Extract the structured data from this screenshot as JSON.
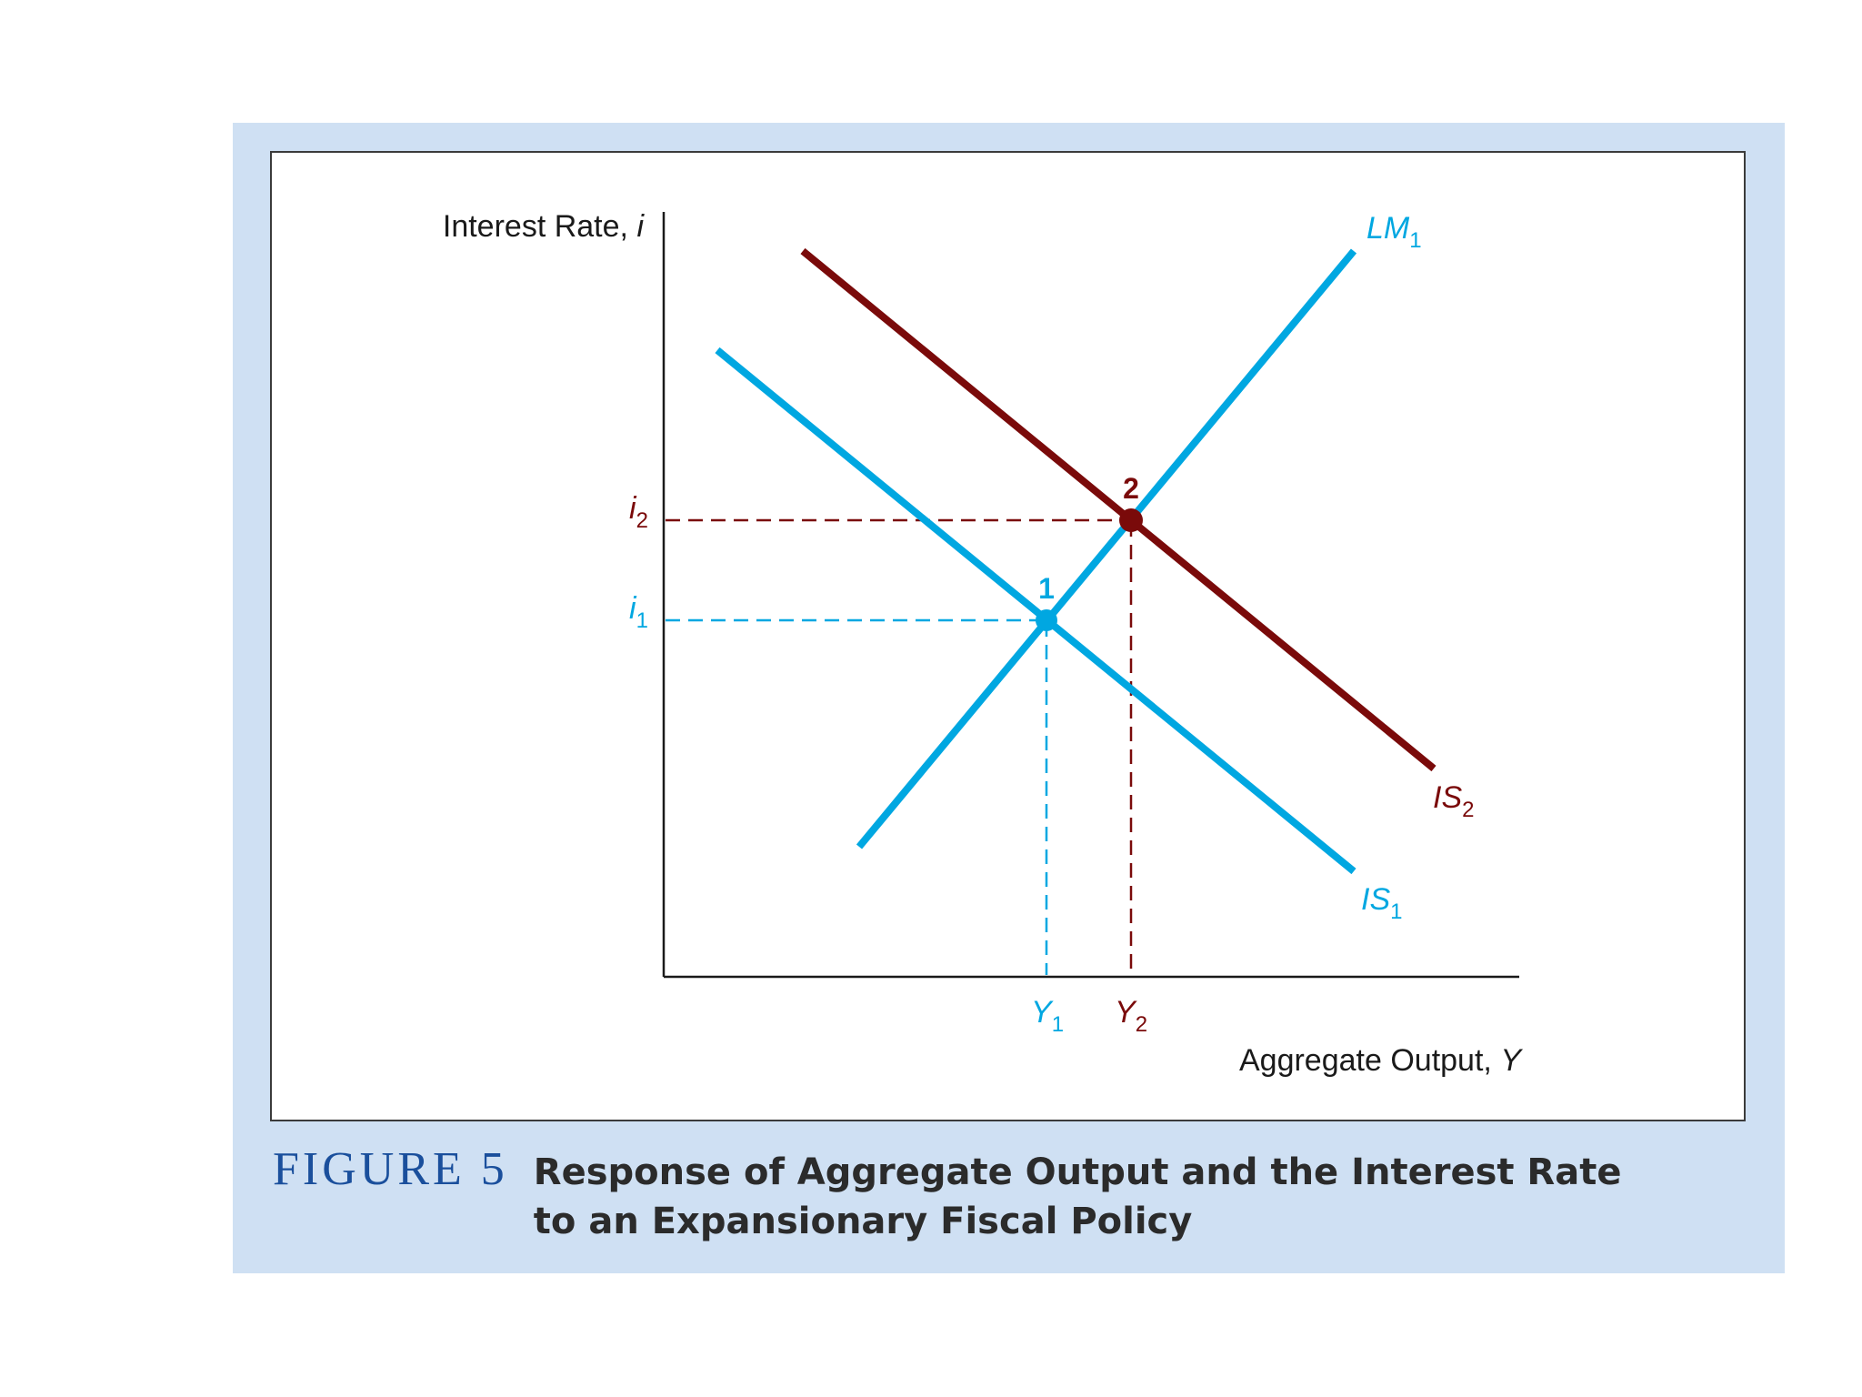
{
  "figure": {
    "number_label": "FIGURE 5",
    "title": "Response of Aggregate Output and the Interest Rate to an Expansionary Fiscal Policy"
  },
  "axes": {
    "y_label": "Interest Rate,",
    "y_symbol": "i",
    "x_label": "Aggregate Output,",
    "x_symbol": "Y"
  },
  "curves": {
    "lm1": {
      "main": "LM",
      "sub": "1"
    },
    "is1": {
      "main": "IS",
      "sub": "1"
    },
    "is2": {
      "main": "IS",
      "sub": "2"
    }
  },
  "equilibria": {
    "point1": {
      "label": "1",
      "y_main": "Y",
      "y_sub": "1",
      "i_main": "i",
      "i_sub": "1"
    },
    "point2": {
      "label": "2",
      "y_main": "Y",
      "y_sub": "2",
      "i_main": "i",
      "i_sub": "2"
    }
  },
  "colors": {
    "blue": "#00a7e1",
    "dark_red": "#7a0a0a",
    "panel_background": "#cfe0f3",
    "figure_number": "#1a4f9c"
  }
}
